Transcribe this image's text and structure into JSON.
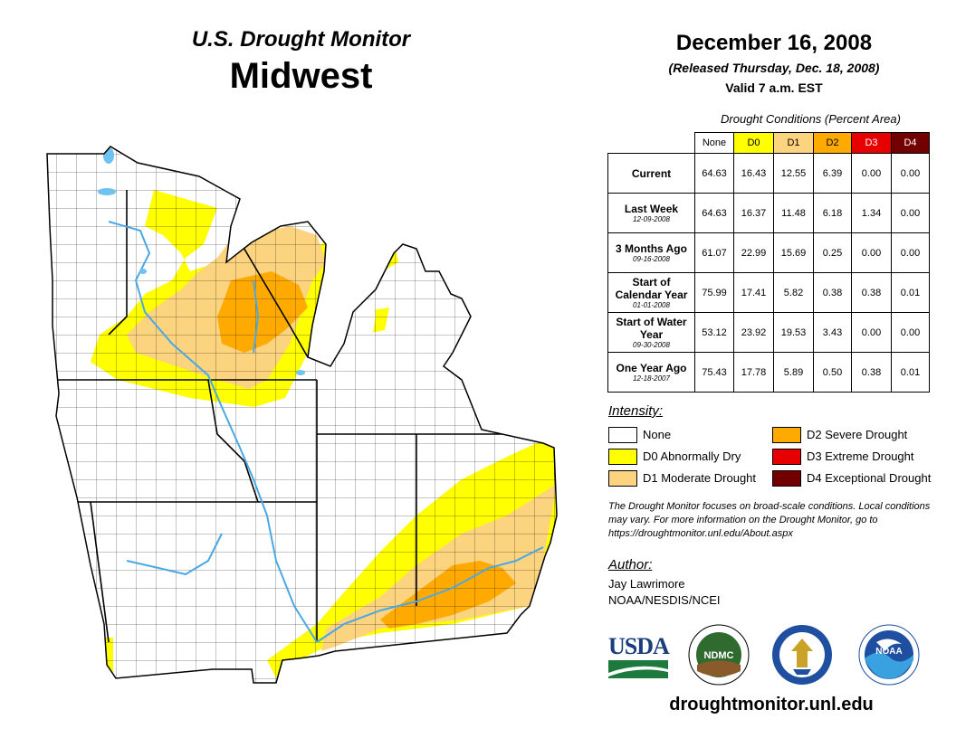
{
  "header": {
    "title": "U.S. Drought Monitor",
    "region": "Midwest",
    "date": "December 16, 2008",
    "released": "(Released Thursday, Dec. 18, 2008)",
    "valid": "Valid 7 a.m. EST"
  },
  "table": {
    "caption": "Drought Conditions (Percent Area)",
    "columns": [
      "None",
      "D0",
      "D1",
      "D2",
      "D3",
      "D4"
    ],
    "column_colors": [
      "#ffffff",
      "#ffff00",
      "#fcd37f",
      "#ffaa00",
      "#e60000",
      "#730000"
    ],
    "rows": [
      {
        "label": "Current",
        "date": "",
        "values": [
          "64.63",
          "16.43",
          "12.55",
          "6.39",
          "0.00",
          "0.00"
        ]
      },
      {
        "label": "Last Week",
        "date": "12-09-2008",
        "values": [
          "64.63",
          "16.37",
          "11.48",
          "6.18",
          "1.34",
          "0.00"
        ]
      },
      {
        "label": "3 Months Ago",
        "date": "09-16-2008",
        "values": [
          "61.07",
          "22.99",
          "15.69",
          "0.25",
          "0.00",
          "0.00"
        ]
      },
      {
        "label": "Start of Calendar Year",
        "date": "01-01-2008",
        "values": [
          "75.99",
          "17.41",
          "5.82",
          "0.38",
          "0.38",
          "0.01"
        ]
      },
      {
        "label": "Start of Water Year",
        "date": "09-30-2008",
        "values": [
          "53.12",
          "23.92",
          "19.53",
          "3.43",
          "0.00",
          "0.00"
        ]
      },
      {
        "label": "One Year Ago",
        "date": "12-18-2007",
        "values": [
          "75.43",
          "17.78",
          "5.89",
          "0.50",
          "0.38",
          "0.01"
        ]
      }
    ]
  },
  "legend": {
    "title": "Intensity:",
    "items": [
      {
        "label": "None",
        "color": "#ffffff"
      },
      {
        "label": "D0 Abnormally Dry",
        "color": "#ffff00"
      },
      {
        "label": "D1 Moderate Drought",
        "color": "#fcd37f"
      },
      {
        "label": "D2 Severe Drought",
        "color": "#ffaa00"
      },
      {
        "label": "D3 Extreme Drought",
        "color": "#e60000"
      },
      {
        "label": "D4 Exceptional Drought",
        "color": "#730000"
      }
    ]
  },
  "note": "The Drought Monitor focuses on broad-scale conditions. Local conditions may vary. For more information on the Drought Monitor, go to https://droughtmonitor.unl.edu/About.aspx",
  "author": {
    "heading": "Author:",
    "name": "Jay Lawrimore",
    "org": "NOAA/NESDIS/NCEI"
  },
  "logos": {
    "usda": "USDA",
    "ndmc": "NDMC",
    "noaa": "NOAA",
    "commerce_icon": "dept-of-commerce-seal-icon"
  },
  "site": "droughtmonitor.unl.edu",
  "map_colors": {
    "water": "#6ec3f0",
    "lake_michigan": "#ffffff",
    "border": "#000000"
  }
}
